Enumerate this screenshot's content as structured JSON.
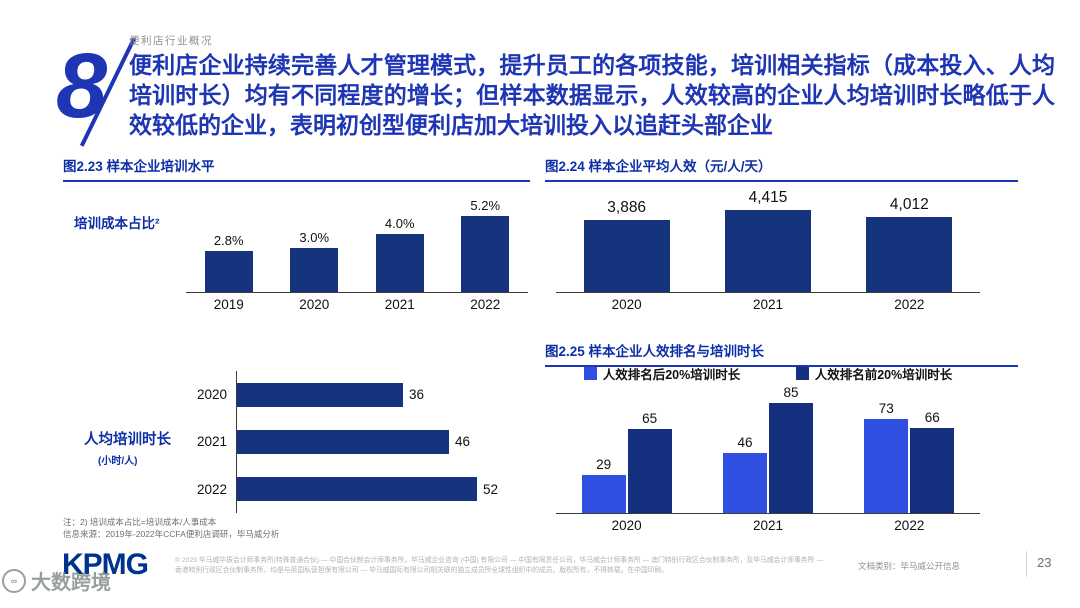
{
  "page": {
    "eyebrow": "便利店行业概况",
    "section_number": "8",
    "headline": "便利店企业持续完善人才管理模式，提升员工的各项技能，培训相关指标（成本投入、人均培训时长）均有不同程度的增长；但样本数据显示，人效较高的企业人均培训时长略低于人效较低的企业，表明初创型便利店加大培训投入以追赶头部企业",
    "page_number": "23",
    "doc_class": "文档类别：毕马威公开信息",
    "kpmg_logo": "KPMG",
    "watermark_text": "大数跨境",
    "watermark_icon": "∞"
  },
  "notes": {
    "footnote": "注：2) 培训成本占比=培训成本/人事成本",
    "source": "信息来源：2019年-2022年CCFA便利店调研，毕马威分析",
    "copyright": "© 2023 毕马威华振会计师事务所(特殊普通合伙) — 中国合伙制会计师事务所，毕马威企业咨询 (中国) 有限公司 — 中国有限责任公司，毕马威会计师事务所 — 澳门特别行政区合伙制事务所，及毕马威会计师事务所 — 香港特别行政区合伙制事务所，均是与英国私营担保有限公司 — 毕马威国际有限公司相关联的独立成员所全球性组织中的成员。版权所有，不得转载。在中国印刷。"
  },
  "colors": {
    "headline_blue": "#1f36b4",
    "title_blue": "#0d2fa6",
    "bar_navy": "#16337e",
    "bar_royal": "#2e4fe0",
    "kpmg_blue": "#00338d"
  },
  "chart_data": [
    {
      "type": "bar",
      "title": "图2.23 样本企业培训水平",
      "series_label": "培训成本占比²",
      "categories": [
        "2019",
        "2020",
        "2021",
        "2022"
      ],
      "values": [
        2.8,
        3.0,
        4.0,
        5.2
      ],
      "value_labels": [
        "2.8%",
        "3.0%",
        "4.0%",
        "5.2%"
      ],
      "bar_color": "#16337e",
      "ylim": [
        0,
        5.2
      ],
      "grid": false,
      "legend_position": "none"
    },
    {
      "type": "bar",
      "title": "图2.24 样本企业平均人效（元/人/天）",
      "categories": [
        "2020",
        "2021",
        "2022"
      ],
      "values": [
        3886,
        4415,
        4012
      ],
      "value_labels": [
        "3,886",
        "4,415",
        "4,012"
      ],
      "bar_color": "#16337e",
      "ylim": [
        0,
        4415
      ],
      "grid": false,
      "legend_position": "none"
    },
    {
      "type": "bar-horizontal",
      "title": "",
      "ylabel": "人均培训时长",
      "ylabel_unit": "(小时/人)",
      "categories": [
        "2020",
        "2021",
        "2022"
      ],
      "values": [
        36,
        46,
        52
      ],
      "bar_color": "#16337e",
      "xlim": [
        0,
        52
      ],
      "grid": false,
      "legend_position": "none"
    },
    {
      "type": "grouped-bar",
      "title": "图2.25 样本企业人效排名与培训时长",
      "categories": [
        "2020",
        "2021",
        "2022"
      ],
      "series": [
        {
          "name": "人效排名后20%培训时长",
          "color": "#2e4fe0",
          "values": [
            29,
            46,
            73
          ]
        },
        {
          "name": "人效排名前20%培训时长",
          "color": "#142f7e",
          "values": [
            65,
            85,
            66
          ]
        }
      ],
      "ylim": [
        0,
        85
      ],
      "grid": false,
      "legend_position": "top"
    }
  ]
}
